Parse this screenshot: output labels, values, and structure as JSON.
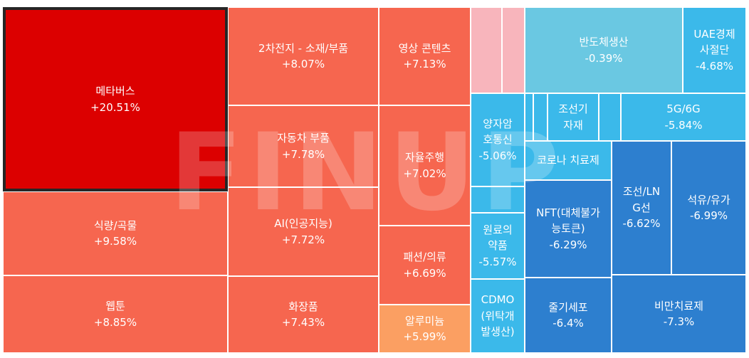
{
  "watermark": "FINUP",
  "chart_data": {
    "type": "treemap",
    "selected": "메타버스",
    "colors": {
      "pos_strong": "#dc0000",
      "pos": "#f6664f",
      "pos_light": "#fb9f62",
      "empty": "#f8b5bc",
      "neg_light": "#6ac8e2",
      "neg": "#3bb9ea",
      "neg_strong": "#2d7fcf"
    },
    "tiles": [
      {
        "name": "메타버스",
        "value": "+20.51%",
        "color": "pos_strong"
      },
      {
        "name": "식량/곡물",
        "value": "+9.58%",
        "color": "pos"
      },
      {
        "name": "웹툰",
        "value": "+8.85%",
        "color": "pos"
      },
      {
        "name": "2차전지 - 소재/부품",
        "value": "+8.07%",
        "color": "pos"
      },
      {
        "name": "자동차 부품",
        "value": "+7.78%",
        "color": "pos"
      },
      {
        "name": "AI(인공지능)",
        "value": "+7.72%",
        "color": "pos"
      },
      {
        "name": "화장품",
        "value": "+7.43%",
        "color": "pos"
      },
      {
        "name": "영상 콘텐츠",
        "value": "+7.13%",
        "color": "pos"
      },
      {
        "name": "자율주행",
        "value": "+7.02%",
        "color": "pos"
      },
      {
        "name": "패션/의류",
        "value": "+6.69%",
        "color": "pos"
      },
      {
        "name": "알루미늄",
        "value": "+5.99%",
        "color": "pos_light"
      },
      {
        "name": "",
        "value": "",
        "color": "empty"
      },
      {
        "name": "",
        "value": "",
        "color": "empty"
      },
      {
        "name": "반도체생산",
        "value": "-0.39%",
        "color": "neg_light"
      },
      {
        "name": "UAE경제\n사절단",
        "value": "-4.68%",
        "color": "neg"
      },
      {
        "name": "양자암\n호통신",
        "value": "-5.06%",
        "color": "neg"
      },
      {
        "name": "",
        "value": "",
        "color": "neg"
      },
      {
        "name": "",
        "value": "",
        "color": "neg"
      },
      {
        "name": "조선기\n자재",
        "value": "",
        "color": "neg"
      },
      {
        "name": "",
        "value": "",
        "color": "neg"
      },
      {
        "name": "5G/6G",
        "value": "-5.84%",
        "color": "neg"
      },
      {
        "name": "코로나 치료제",
        "value": "",
        "color": "neg"
      },
      {
        "name": "",
        "value": "",
        "color": "neg"
      },
      {
        "name": "원료의\n약품",
        "value": "-5.57%",
        "color": "neg"
      },
      {
        "name": "CDMO\n(위탁개\n발생산)",
        "value": "",
        "color": "neg"
      },
      {
        "name": "NFT(대체불가\n능토큰)",
        "value": "-6.29%",
        "color": "neg_strong"
      },
      {
        "name": "줄기세포",
        "value": "-6.4%",
        "color": "neg_strong"
      },
      {
        "name": "조선/LN\nG선",
        "value": "-6.62%",
        "color": "neg_strong"
      },
      {
        "name": "석유/유가",
        "value": "-6.99%",
        "color": "neg_strong"
      },
      {
        "name": "비만치료제",
        "value": "-7.3%",
        "color": "neg_strong"
      }
    ]
  }
}
